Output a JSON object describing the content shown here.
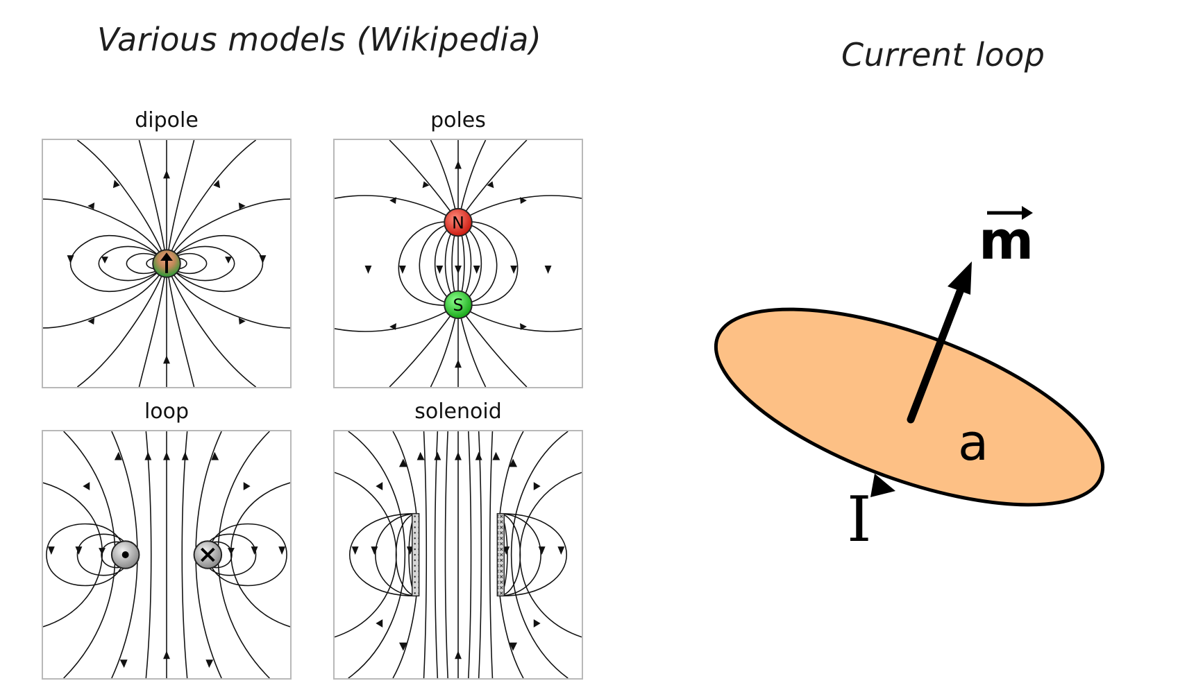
{
  "titles": {
    "left": "Various models (Wikipedia)",
    "right": "Current loop"
  },
  "panels": [
    {
      "label": "dipole"
    },
    {
      "label": "poles",
      "north_mark": "N",
      "south_mark": "S"
    },
    {
      "label": "loop"
    },
    {
      "label": "solenoid"
    }
  ],
  "current_loop": {
    "moment_label": "m",
    "radius_label": "a",
    "current_label": "I",
    "fill_color": "#fdc085"
  },
  "colors": {
    "north": "#e03a2a",
    "south": "#33cc33",
    "panel_border": "#b8b8b8"
  }
}
